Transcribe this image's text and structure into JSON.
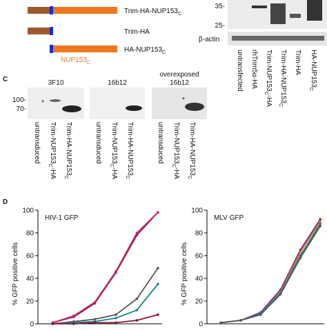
{
  "panel_b": {
    "constructs": [
      [
        "Trim-HA-NUP153",
        "C"
      ],
      [
        "Trim-HA"
      ],
      [
        "HA-NUP153",
        "C"
      ]
    ],
    "domain_label": [
      "NUP153",
      "C"
    ],
    "markers": [
      "35-",
      "25-"
    ],
    "loading": "β-actin",
    "lanes": [
      [
        "untransfected"
      ],
      [
        "rhTrim5α-HA"
      ],
      [
        "Trim-NUP153",
        "C",
        "-HA"
      ],
      [
        "Trim-HA-NUP153",
        "C"
      ],
      [
        "Trim-HA"
      ],
      [
        "HA-NUP153",
        "C"
      ]
    ]
  },
  "panel_c": {
    "letter": "C",
    "markers": [
      "100-",
      "70-"
    ],
    "asterisk": "*",
    "blots": [
      [
        "3F10"
      ],
      [
        "16b12"
      ],
      [
        "overexposed",
        "16b12"
      ]
    ],
    "lanes": [
      [
        "untransduced"
      ],
      [
        "Trim-NUP153",
        "C",
        "-HA"
      ],
      [
        "Trim-HA-NUP153",
        "C"
      ]
    ]
  },
  "panel_d": {
    "letter": "D"
  },
  "chart_data": [
    {
      "type": "line",
      "title": "HIV-1 GFP",
      "y_label": "% GFP positive cells",
      "x": [
        1,
        2,
        3,
        4,
        5,
        6
      ],
      "xlim": [
        0.3,
        6.2
      ],
      "ylim": [
        0,
        100
      ],
      "yticks": [
        0,
        20,
        40,
        60,
        80,
        100
      ],
      "series": [
        {
          "color": "#7a1f8a",
          "values": [
            1,
            6,
            18,
            45,
            78,
            98
          ]
        },
        {
          "color": "#d42a4a",
          "values": [
            1,
            7,
            19,
            46,
            80,
            98
          ]
        },
        {
          "color": "#555555",
          "values": [
            0,
            2,
            4,
            8,
            22,
            49
          ]
        },
        {
          "color": "#138a8a",
          "values": [
            0,
            1,
            2,
            5,
            12,
            35
          ]
        },
        {
          "color": "#8a1030",
          "values": [
            0,
            0,
            1,
            1,
            3,
            8
          ]
        }
      ]
    },
    {
      "type": "line",
      "title": "MLV GFP",
      "y_label": "% GFP positive cells",
      "x": [
        1,
        2,
        3,
        4,
        5,
        6
      ],
      "xlim": [
        0.3,
        6.2
      ],
      "ylim": [
        0,
        100
      ],
      "yticks": [
        0,
        20,
        40,
        60,
        80,
        100
      ],
      "series": [
        {
          "color": "#7a1f8a",
          "values": [
            1,
            3,
            10,
            30,
            65,
            92
          ]
        },
        {
          "color": "#e07a20",
          "values": [
            1,
            3,
            9,
            28,
            63,
            90
          ]
        },
        {
          "color": "#138a8a",
          "values": [
            1,
            3,
            9,
            27,
            60,
            88
          ]
        },
        {
          "color": "#555555",
          "values": [
            1,
            3,
            8,
            26,
            58,
            86
          ]
        }
      ]
    }
  ]
}
